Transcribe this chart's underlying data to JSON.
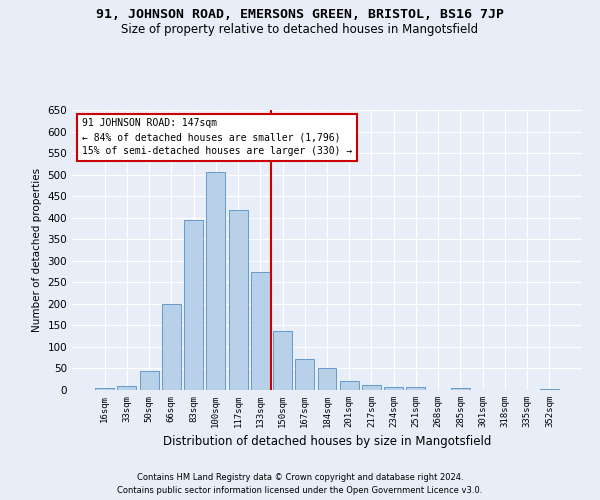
{
  "title": "91, JOHNSON ROAD, EMERSONS GREEN, BRISTOL, BS16 7JP",
  "subtitle": "Size of property relative to detached houses in Mangotsfield",
  "xlabel": "Distribution of detached houses by size in Mangotsfield",
  "ylabel": "Number of detached properties",
  "footer1": "Contains HM Land Registry data © Crown copyright and database right 2024.",
  "footer2": "Contains public sector information licensed under the Open Government Licence v3.0.",
  "bar_labels": [
    "16sqm",
    "33sqm",
    "50sqm",
    "66sqm",
    "83sqm",
    "100sqm",
    "117sqm",
    "133sqm",
    "150sqm",
    "167sqm",
    "184sqm",
    "201sqm",
    "217sqm",
    "234sqm",
    "251sqm",
    "268sqm",
    "285sqm",
    "301sqm",
    "318sqm",
    "335sqm",
    "352sqm"
  ],
  "bar_values": [
    5,
    10,
    45,
    200,
    395,
    505,
    418,
    275,
    138,
    73,
    50,
    20,
    12,
    7,
    7,
    0,
    5,
    0,
    0,
    0,
    3
  ],
  "bar_color": "#b8d0e8",
  "bar_edge_color": "#6699cc",
  "bg_color": "#e8eef8",
  "grid_color": "#ffffff",
  "property_line_label": "91 JOHNSON ROAD: 147sqm",
  "annotation_line1": "← 84% of detached houses are smaller (1,796)",
  "annotation_line2": "15% of semi-detached houses are larger (330) →",
  "annotation_box_color": "#ffffff",
  "annotation_box_edge": "#cc0000",
  "vline_color": "#cc0000",
  "ylim": [
    0,
    650
  ],
  "yticks": [
    0,
    50,
    100,
    150,
    200,
    250,
    300,
    350,
    400,
    450,
    500,
    550,
    600,
    650
  ],
  "vline_index": 7.5
}
